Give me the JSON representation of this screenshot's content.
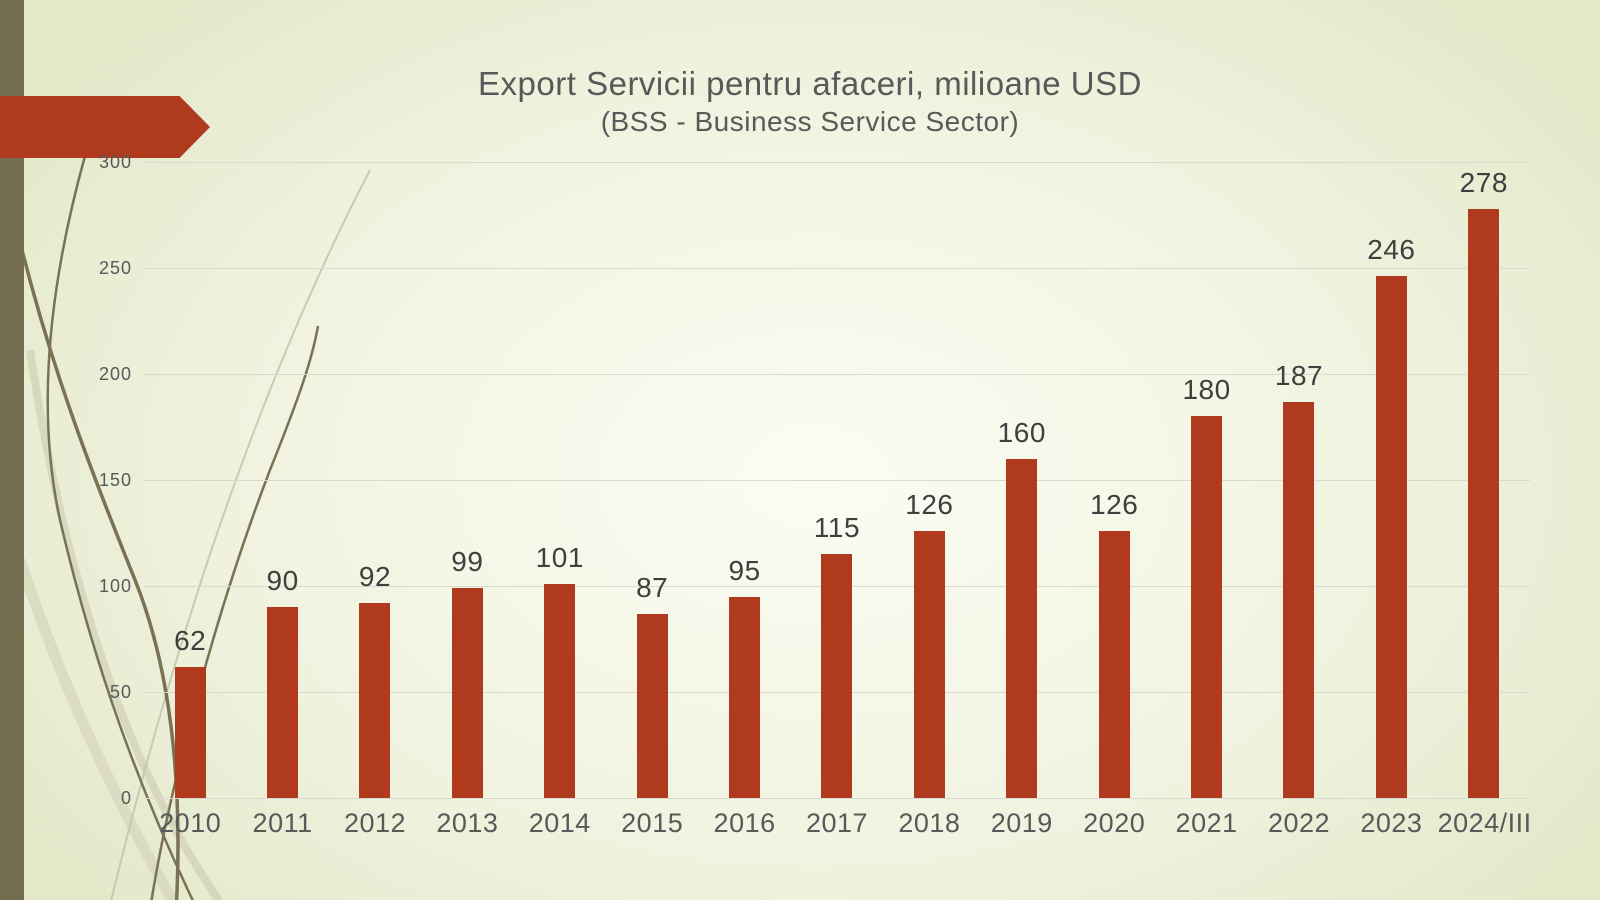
{
  "chart_data": {
    "type": "bar",
    "title": "Export Servicii pentru afaceri, milioane USD",
    "subtitle": "(BSS - Business Service Sector)",
    "categories": [
      "2010",
      "2011",
      "2012",
      "2013",
      "2014",
      "2015",
      "2016",
      "2017",
      "2018",
      "2019",
      "2020",
      "2021",
      "2022",
      "2023",
      "2024/III"
    ],
    "values": [
      62,
      90,
      92,
      99,
      101,
      87,
      95,
      115,
      126,
      160,
      126,
      180,
      187,
      246,
      278
    ],
    "ylim": [
      0,
      300
    ],
    "yticks": [
      0,
      50,
      100,
      150,
      200,
      250,
      300
    ],
    "grid": true,
    "legend": false,
    "xlabel": "",
    "ylabel": "",
    "bar_color": "#B03A1D",
    "data_label_color": "#3F3F3F",
    "axis_text_color": "#595959",
    "gridline_color": "#D9D9D0"
  },
  "theme": {
    "background_outer": "#E4E9CA",
    "background_center": "#FBFCF3",
    "sidebar_color": "#756D50",
    "arrow_color": "#AF3A1E",
    "curve_dark": "#7A7254",
    "curve_light": "#C2C0A6"
  }
}
